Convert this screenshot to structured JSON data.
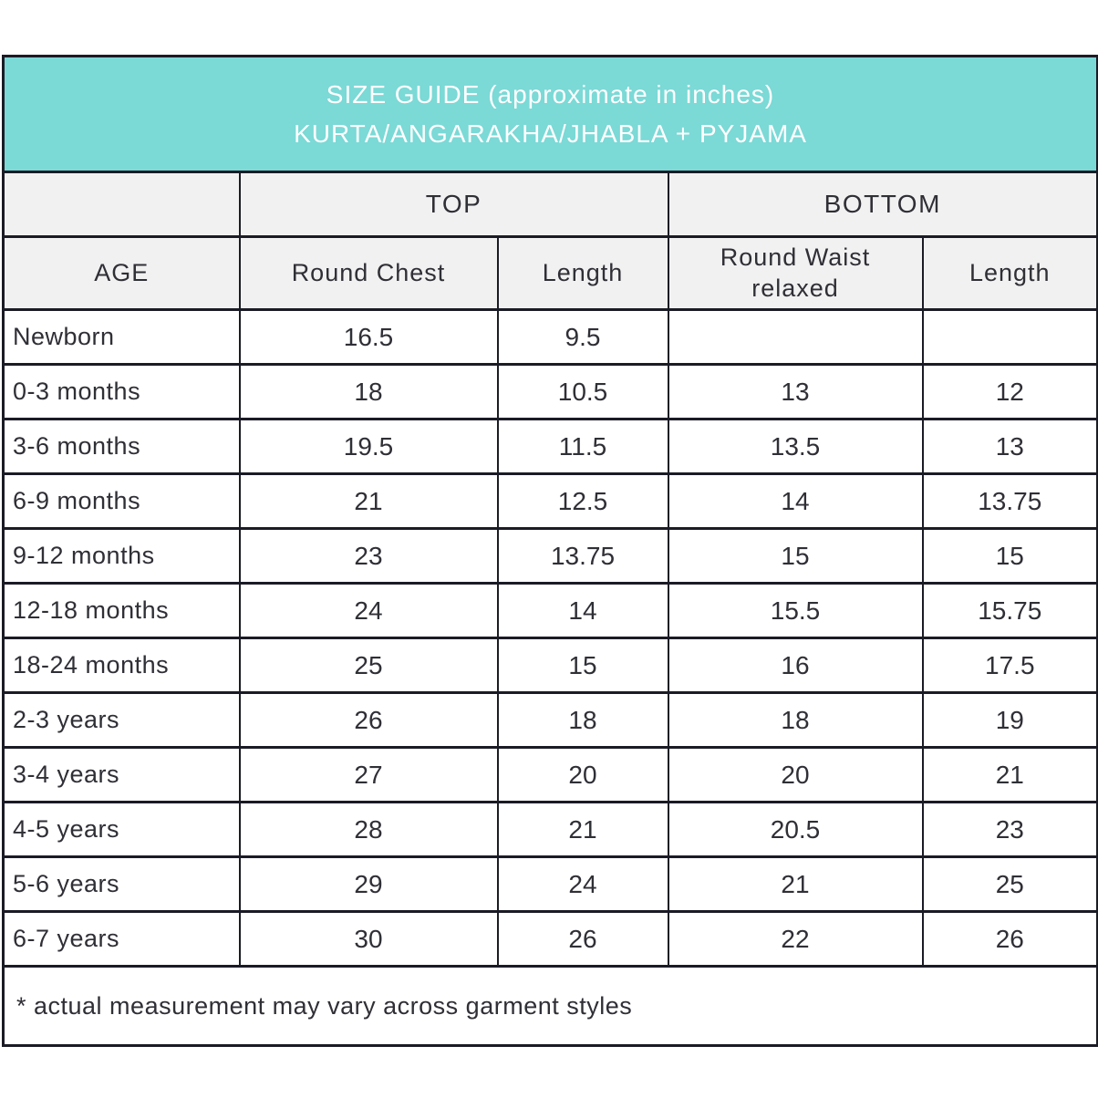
{
  "banner": {
    "title": "SIZE GUIDE (approximate in inches)",
    "subtitle": "KURTA/ANGARAKHA/JHABLA + PYJAMA"
  },
  "chart_data": {
    "type": "table",
    "title": "SIZE GUIDE (approximate in inches)",
    "subtitle": "KURTA/ANGARAKHA/JHABLA + PYJAMA",
    "group_headers": {
      "top": "TOP",
      "bottom": "BOTTOM"
    },
    "columns": [
      "AGE",
      "Round Chest",
      "Length",
      "Round Waist relaxed",
      "Length"
    ],
    "rows": [
      {
        "age": "Newborn",
        "values": [
          "16.5",
          "9.5",
          "",
          ""
        ]
      },
      {
        "age": "0-3 months",
        "values": [
          "18",
          "10.5",
          "13",
          "12"
        ]
      },
      {
        "age": "3-6 months",
        "values": [
          "19.5",
          "11.5",
          "13.5",
          "13"
        ]
      },
      {
        "age": "6-9 months",
        "values": [
          "21",
          "12.5",
          "14",
          "13.75"
        ]
      },
      {
        "age": "9-12 months",
        "values": [
          "23",
          "13.75",
          "15",
          "15"
        ]
      },
      {
        "age": "12-18 months",
        "values": [
          "24",
          "14",
          "15.5",
          "15.75"
        ]
      },
      {
        "age": "18-24 months",
        "values": [
          "25",
          "15",
          "16",
          "17.5"
        ]
      },
      {
        "age": "2-3 years",
        "values": [
          "26",
          "18",
          "18",
          "19"
        ]
      },
      {
        "age": "3-4 years",
        "values": [
          "27",
          "20",
          "20",
          "21"
        ]
      },
      {
        "age": "4-5 years",
        "values": [
          "28",
          "21",
          "20.5",
          "23"
        ]
      },
      {
        "age": "5-6 years",
        "values": [
          "29",
          "24",
          "21",
          "25"
        ]
      },
      {
        "age": "6-7 years",
        "values": [
          "30",
          "26",
          "22",
          "26"
        ]
      }
    ],
    "footnote": "* actual measurement may vary across garment styles"
  },
  "colors": {
    "banner_bg": "#7bd9d6",
    "banner_text": "#ffffff",
    "header_bg": "#f1f1f1",
    "border": "#1b1b26",
    "text": "#2f2f36"
  }
}
